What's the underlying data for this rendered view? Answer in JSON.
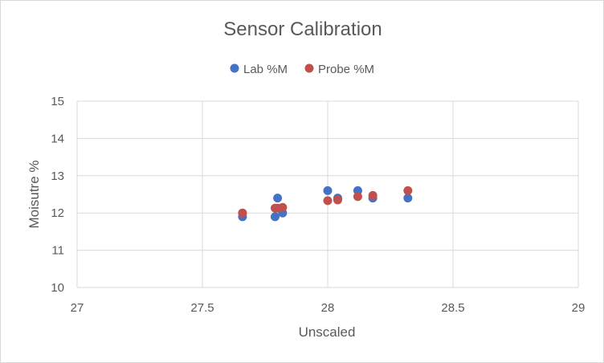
{
  "chart_data": {
    "type": "scatter",
    "title": "Sensor Calibration",
    "xlabel": "Unscaled",
    "ylabel": "Moisutre %",
    "xlim": [
      27,
      29
    ],
    "ylim": [
      10,
      15
    ],
    "x_ticks": [
      27,
      27.5,
      28,
      28.5,
      29
    ],
    "y_ticks": [
      10,
      11,
      12,
      13,
      14,
      15
    ],
    "x_tick_labels": [
      "27",
      "27.5",
      "28",
      "28.5",
      "29"
    ],
    "y_tick_labels": [
      "10",
      "11",
      "12",
      "13",
      "14",
      "15"
    ],
    "grid": true,
    "legend_position": "top",
    "series": [
      {
        "name": "Lab %M",
        "color": "#4472c4",
        "points": [
          {
            "x": 27.66,
            "y": 11.9
          },
          {
            "x": 27.79,
            "y": 11.9
          },
          {
            "x": 27.8,
            "y": 12.4
          },
          {
            "x": 27.82,
            "y": 12.0
          },
          {
            "x": 28.0,
            "y": 12.6
          },
          {
            "x": 28.04,
            "y": 12.4
          },
          {
            "x": 28.12,
            "y": 12.6
          },
          {
            "x": 28.18,
            "y": 12.4
          },
          {
            "x": 28.32,
            "y": 12.4
          }
        ]
      },
      {
        "name": "Probe %M",
        "color": "#c0504d",
        "points": [
          {
            "x": 27.66,
            "y": 12.0
          },
          {
            "x": 27.79,
            "y": 12.13
          },
          {
            "x": 27.8,
            "y": 12.13
          },
          {
            "x": 27.82,
            "y": 12.15
          },
          {
            "x": 28.0,
            "y": 12.33
          },
          {
            "x": 28.04,
            "y": 12.35
          },
          {
            "x": 28.12,
            "y": 12.44
          },
          {
            "x": 28.18,
            "y": 12.47
          },
          {
            "x": 28.32,
            "y": 12.6
          }
        ]
      }
    ]
  }
}
